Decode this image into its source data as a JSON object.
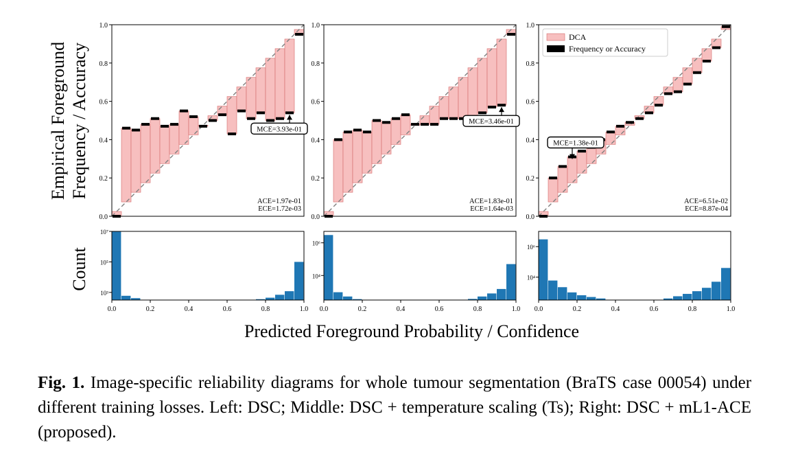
{
  "figure": {
    "y_label_top_line1": "Empirical Foreground",
    "y_label_top_line2": "Frequency / Accuracy",
    "y_label_bottom": "Count",
    "x_label": "Predicted Foreground Probability / Confidence",
    "legend": {
      "dca": "DCA",
      "acc": "Frequency or Accuracy"
    },
    "colors": {
      "dca_fill": "#f7bfbf",
      "dca_edge": "#d46a6a",
      "hist": "#1f77b4",
      "acc_bar": "#000000",
      "diagonal": "#808080"
    }
  },
  "caption": {
    "label": "Fig. 1.",
    "text": "Image-specific reliability diagrams for whole tumour segmentation (BraTS case 00054) under different training losses. Left: DSC; Middle: DSC + temperature scaling (Ts); Right: DSC + mL1-ACE (proposed)."
  },
  "chart_data": [
    {
      "type": "bar",
      "panel": "left",
      "xlim": [
        0,
        1
      ],
      "ylim": [
        0,
        1
      ],
      "xticks": [
        "0.0",
        "0.2",
        "0.4",
        "0.6",
        "0.8",
        "1.0"
      ],
      "yticks": [
        "0.0",
        "0.2",
        "0.4",
        "0.6",
        "0.8",
        "1.0"
      ],
      "bins": 20,
      "accuracy": [
        0.0,
        0.46,
        0.45,
        0.48,
        0.51,
        0.47,
        0.48,
        0.55,
        0.52,
        0.47,
        0.5,
        0.53,
        0.43,
        0.55,
        0.51,
        0.54,
        0.5,
        0.51,
        0.54,
        0.95
      ],
      "hist_counts": [
        10000000,
        600,
        420,
        310,
        260,
        240,
        200,
        190,
        180,
        160,
        150,
        185,
        200,
        240,
        300,
        360,
        450,
        700,
        1200,
        100000
      ],
      "hist_yticks": [
        "10^3",
        "10^5",
        "10^7"
      ],
      "hist_ylog": [
        2.5,
        7.0
      ],
      "ace": "ACE=1.97e-01",
      "ece": "ECE=1.72e-03",
      "mce": "MCE=3.93e-01",
      "mce_bin": 18,
      "annotation_position": "right"
    },
    {
      "type": "bar",
      "panel": "middle",
      "xlim": [
        0,
        1
      ],
      "ylim": [
        0,
        1
      ],
      "xticks": [
        "0.0",
        "0.2",
        "0.4",
        "0.6",
        "0.8",
        "1.0"
      ],
      "yticks": [
        "0.0",
        "0.2",
        "0.4",
        "0.6",
        "0.8",
        "1.0"
      ],
      "bins": 20,
      "accuracy": [
        0.0,
        0.4,
        0.44,
        0.45,
        0.44,
        0.5,
        0.49,
        0.51,
        0.53,
        0.48,
        0.48,
        0.48,
        0.51,
        0.51,
        0.51,
        0.52,
        0.54,
        0.57,
        0.58,
        0.95
      ],
      "hist_counts": [
        3000000,
        950,
        520,
        360,
        300,
        270,
        240,
        215,
        200,
        180,
        175,
        190,
        215,
        255,
        300,
        370,
        520,
        800,
        1500,
        50000
      ],
      "hist_yticks": [
        "10^4",
        "10^6"
      ],
      "hist_ylog": [
        2.5,
        6.7
      ],
      "ace": "ACE=1.83e-01",
      "ece": "ECE=1.64e-03",
      "mce": "MCE=3.46e-01",
      "mce_bin": 18,
      "annotation_position": "right"
    },
    {
      "type": "bar",
      "panel": "right",
      "xlim": [
        0,
        1
      ],
      "ylim": [
        0,
        1
      ],
      "xticks": [
        "0.0",
        "0.2",
        "0.4",
        "0.6",
        "0.8",
        "1.0"
      ],
      "yticks": [
        "0.0",
        "0.2",
        "0.4",
        "0.6",
        "0.8",
        "1.0"
      ],
      "bins": 20,
      "accuracy": [
        0.0,
        0.2,
        0.26,
        0.31,
        0.34,
        0.36,
        0.4,
        0.44,
        0.47,
        0.49,
        0.51,
        0.54,
        0.58,
        0.64,
        0.65,
        0.69,
        0.75,
        0.81,
        0.88,
        0.99
      ],
      "hist_counts": [
        3000000,
        6000,
        2200,
        1000,
        650,
        500,
        400,
        330,
        290,
        270,
        260,
        280,
        320,
        400,
        560,
        800,
        1200,
        2000,
        5000,
        40000
      ],
      "hist_yticks": [
        "10^4",
        "10^6"
      ],
      "hist_ylog": [
        2.5,
        7.0
      ],
      "ace": "ACE=6.51e-02",
      "ece": "ECE=8.87e-04",
      "mce": "MCE=1.38e-01",
      "mce_bin": 3,
      "annotation_position": "left"
    }
  ]
}
